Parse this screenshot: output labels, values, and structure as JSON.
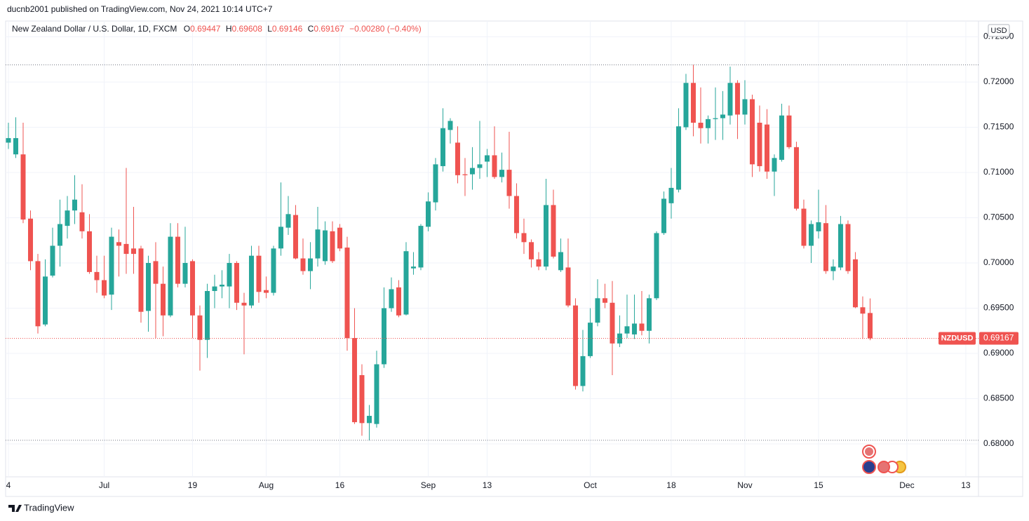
{
  "header": {
    "published": "ducnb2001 published on TradingView.com, Nov 24, 2021 10:14 UTC+7",
    "symbol": "New Zealand Dollar / U.S. Dollar, 1D, FXCM",
    "o_label": "O",
    "h_label": "H",
    "l_label": "L",
    "c_label": "C",
    "change": "−0.00280 (−0.40%)"
  },
  "currency": "USD",
  "ticker": "NZDUSD",
  "footer": "TradingView",
  "chart_data": {
    "type": "candlestick",
    "up_color": "#26a69a",
    "down_color": "#ef5350",
    "categories": [
      null,
      null,
      null,
      null,
      null,
      null,
      null,
      null,
      null,
      null,
      null,
      null,
      null,
      null,
      null,
      null,
      null,
      null,
      null,
      null,
      null,
      null,
      null,
      null,
      null,
      null,
      null,
      null,
      null,
      null,
      null,
      null,
      null,
      null,
      null,
      null,
      null,
      null,
      null,
      null,
      null,
      null,
      null,
      null,
      null,
      null,
      null,
      null,
      null,
      null,
      null,
      null,
      null,
      null,
      null,
      null,
      null,
      null,
      null,
      null,
      null,
      null,
      null,
      null,
      null,
      null,
      null,
      null,
      null,
      null,
      null,
      null,
      null,
      null,
      null,
      null,
      null,
      null,
      null,
      null,
      null,
      null,
      null,
      null,
      null,
      null,
      null,
      null,
      null,
      null,
      null,
      null,
      null,
      null,
      null,
      null,
      null,
      null,
      null,
      null,
      null,
      null,
      null,
      null,
      null,
      null,
      null,
      null,
      null,
      null,
      null,
      null,
      null,
      null,
      null,
      null,
      null,
      null
    ],
    "open": [
      0.7133,
      0.712,
      0.712,
      0.7049,
      0.7002,
      0.6932,
      0.6986,
      0.7019,
      0.7041,
      0.7058,
      0.7056,
      0.7035,
      0.699,
      0.6981,
      0.6965,
      0.7023,
      0.7021,
      0.7016,
      0.7016,
      0.6947,
      0.7002,
      0.6977,
      0.6942,
      0.7029,
      0.6977,
      0.7002,
      0.6942,
      0.6915,
      0.6969,
      0.6974,
      0.6974,
      0.7,
      0.6956,
      0.6953,
      0.7008,
      0.697,
      0.6967,
      0.7016,
      0.7039,
      0.7053,
      0.7005,
      0.6991,
      0.7005,
      0.7002,
      0.7035,
      0.7039,
      0.7017,
      0.6917,
      0.6876,
      0.6823,
      0.6822,
      0.6888,
      0.695,
      0.6973,
      0.6943,
      0.6994,
      0.6995,
      0.704,
      0.7067,
      0.7107,
      0.7147,
      0.7133,
      0.7098,
      0.7098,
      0.7105,
      0.7112,
      0.7119,
      0.7095,
      0.7103,
      0.7074,
      0.7033,
      0.7023,
      0.7004,
      0.6996,
      0.7064,
      0.6992,
      0.6995,
      0.6953,
      0.6864,
      0.6897,
      0.6934,
      0.6961,
      0.6956,
      0.6911,
      0.6922,
      0.6921,
      0.6933,
      0.6925,
      0.6961,
      0.7033,
      0.7066,
      0.7081,
      0.715,
      0.7199,
      0.7155,
      0.7149,
      0.7159,
      0.716,
      0.7163,
      0.7199,
      0.7164,
      0.7181,
      0.7155,
      0.7153,
      0.7101,
      0.7114,
      0.7163,
      0.7128,
      0.706,
      0.7019,
      0.7035,
      0.7044,
      0.6991,
      0.6995,
      0.7043,
      0.7004,
      0.6951,
      0.69447
    ],
    "high": [
      0.7155,
      0.7161,
      0.7155,
      0.7058,
      0.701,
      0.7004,
      0.7039,
      0.707,
      0.7074,
      0.7097,
      0.7087,
      0.7054,
      0.7008,
      0.7008,
      0.7039,
      0.7037,
      0.7105,
      0.7062,
      0.7019,
      0.7008,
      0.7023,
      0.6996,
      0.7044,
      0.7044,
      0.704,
      0.7004,
      0.6953,
      0.6977,
      0.6987,
      0.6992,
      0.701,
      0.7002,
      0.6967,
      0.7019,
      0.7019,
      0.6985,
      0.7019,
      0.7089,
      0.7074,
      0.7064,
      0.7027,
      0.7023,
      0.7062,
      0.7046,
      0.7046,
      0.7043,
      0.7029,
      0.695,
      0.6888,
      0.6843,
      0.6903,
      0.6973,
      0.6984,
      0.6981,
      0.7023,
      0.7012,
      0.7043,
      0.7078,
      0.7116,
      0.7171,
      0.716,
      0.7151,
      0.7116,
      0.7128,
      0.7157,
      0.7126,
      0.7151,
      0.7122,
      0.7145,
      0.7088,
      0.7049,
      0.7026,
      0.7012,
      0.7093,
      0.7081,
      0.7027,
      0.7027,
      0.6961,
      0.6926,
      0.695,
      0.6982,
      0.6977,
      0.698,
      0.6942,
      0.6965,
      0.6965,
      0.6969,
      0.6965,
      0.7035,
      0.7079,
      0.7105,
      0.7171,
      0.7209,
      0.7219,
      0.7194,
      0.7163,
      0.7194,
      0.719,
      0.7217,
      0.7202,
      0.7202,
      0.7186,
      0.7174,
      0.717,
      0.712,
      0.7176,
      0.7174,
      0.7134,
      0.707,
      0.7047,
      0.7081,
      0.7064,
      0.7004,
      0.7052,
      0.7047,
      0.7012,
      0.6963,
      0.69608
    ],
    "low": [
      0.7126,
      0.7116,
      0.7044,
      0.6992,
      0.6922,
      0.693,
      0.6984,
      0.6996,
      0.7027,
      0.7043,
      0.7027,
      0.6988,
      0.6967,
      0.6961,
      0.6948,
      0.6985,
      0.6988,
      0.6988,
      0.6934,
      0.6924,
      0.6917,
      0.6919,
      0.694,
      0.6973,
      0.6973,
      0.6917,
      0.6881,
      0.6895,
      0.695,
      0.6961,
      0.695,
      0.6948,
      0.6899,
      0.695,
      0.6956,
      0.6961,
      0.6964,
      0.7008,
      0.7031,
      0.7004,
      0.6987,
      0.6971,
      0.6996,
      0.6998,
      0.7,
      0.7013,
      0.6903,
      0.6822,
      0.6809,
      0.6804,
      0.6818,
      0.6884,
      0.6946,
      0.694,
      0.6942,
      0.6987,
      0.6992,
      0.7035,
      0.7058,
      0.7101,
      0.7132,
      0.7088,
      0.7074,
      0.7081,
      0.7093,
      0.7095,
      0.7093,
      0.7089,
      0.706,
      0.7027,
      0.701,
      0.6995,
      0.6992,
      0.6992,
      0.7005,
      0.699,
      0.6951,
      0.686,
      0.6858,
      0.6895,
      0.693,
      0.695,
      0.6876,
      0.6907,
      0.6917,
      0.6916,
      0.692,
      0.6911,
      0.6959,
      0.7031,
      0.7049,
      0.7078,
      0.7147,
      0.714,
      0.7132,
      0.7132,
      0.7136,
      0.7136,
      0.7153,
      0.7137,
      0.7153,
      0.7095,
      0.7101,
      0.7093,
      0.7074,
      0.7112,
      0.7126,
      0.7058,
      0.7016,
      0.7,
      0.7027,
      0.6988,
      0.6981,
      0.6992,
      0.6988,
      0.695,
      0.6916,
      0.69146
    ],
    "close": [
      0.7138,
      0.7138,
      0.7048,
      0.7002,
      0.693,
      0.6985,
      0.7019,
      0.7043,
      0.7058,
      0.707,
      0.7035,
      0.699,
      0.6981,
      0.6964,
      0.7029,
      0.7019,
      0.701,
      0.701,
      0.6946,
      0.7,
      0.6977,
      0.6942,
      0.7029,
      0.6977,
      0.7,
      0.6942,
      0.6915,
      0.6969,
      0.6974,
      0.6976,
      0.7,
      0.6956,
      0.6953,
      0.7008,
      0.6968,
      0.6967,
      0.7016,
      0.704,
      0.7054,
      0.7005,
      0.6991,
      0.7005,
      0.7037,
      0.7036,
      0.7002,
      0.7016,
      0.6917,
      0.6824,
      0.6823,
      0.6831,
      0.6888,
      0.695,
      0.6971,
      0.6942,
      0.7013,
      0.6996,
      0.7041,
      0.7068,
      0.7109,
      0.7149,
      0.7157,
      0.7097,
      0.7097,
      0.7105,
      0.7109,
      0.7119,
      0.7095,
      0.7103,
      0.7074,
      0.7033,
      0.7023,
      0.7004,
      0.6996,
      0.7064,
      0.7007,
      0.7012,
      0.6953,
      0.6864,
      0.6897,
      0.6934,
      0.6961,
      0.6956,
      0.6911,
      0.6922,
      0.693,
      0.6933,
      0.6925,
      0.6961,
      0.7033,
      0.7071,
      0.7083,
      0.7151,
      0.7199,
      0.7155,
      0.7149,
      0.7159,
      0.716,
      0.7164,
      0.7199,
      0.7164,
      0.7181,
      0.7109,
      0.7107,
      0.7101,
      0.7116,
      0.7163,
      0.7128,
      0.706,
      0.7019,
      0.7043,
      0.7045,
      0.6991,
      0.6996,
      0.7043,
      0.6991,
      0.6951,
      0.6944,
      0.69167
    ],
    "xlim": [
      -0.38,
      131.72
    ],
    "xticks": [
      {
        "value": 0,
        "label": "4"
      },
      {
        "value": 13,
        "label": "Jul"
      },
      {
        "value": 25,
        "label": "19"
      },
      {
        "value": 35,
        "label": "Aug"
      },
      {
        "value": 45,
        "label": "16"
      },
      {
        "value": 57,
        "label": "Sep"
      },
      {
        "value": 65,
        "label": "13"
      },
      {
        "value": 79,
        "label": "Oct"
      },
      {
        "value": 90,
        "label": "18"
      },
      {
        "value": 100,
        "label": "Nov"
      },
      {
        "value": 110,
        "label": "15"
      },
      {
        "value": 122,
        "label": "Dec"
      },
      {
        "value": 130,
        "label": "13"
      }
    ],
    "ylim": [
      0.67636,
      0.72674
    ],
    "yticks": [
      {
        "value": 0.725,
        "label": "0.72500"
      },
      {
        "value": 0.72,
        "label": "0.72000"
      },
      {
        "value": 0.715,
        "label": "0.71500"
      },
      {
        "value": 0.71,
        "label": "0.71000"
      },
      {
        "value": 0.705,
        "label": "0.70500"
      },
      {
        "value": 0.7,
        "label": "0.70000"
      },
      {
        "value": 0.695,
        "label": "0.69500"
      },
      {
        "value": 0.69,
        "label": "0.69000"
      },
      {
        "value": 0.685,
        "label": "0.68500"
      },
      {
        "value": 0.68,
        "label": "0.68000"
      }
    ],
    "grid": true
  }
}
